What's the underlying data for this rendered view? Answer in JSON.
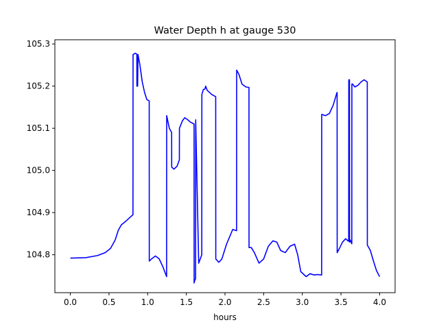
{
  "chart_data": {
    "type": "line",
    "title": "Water Depth h at gauge 530",
    "xlabel": "hours",
    "ylabel": "",
    "xlim": [
      -0.2,
      4.2
    ],
    "ylim": [
      104.71,
      105.31
    ],
    "xticks": [
      0.0,
      0.5,
      1.0,
      1.5,
      2.0,
      2.5,
      3.0,
      3.5,
      4.0
    ],
    "xtick_labels": [
      "0.0",
      "0.5",
      "1.0",
      "1.5",
      "2.0",
      "2.5",
      "3.0",
      "3.5",
      "4.0"
    ],
    "yticks": [
      104.8,
      104.9,
      105.0,
      105.1,
      105.2,
      105.3
    ],
    "ytick_labels": [
      "104.8",
      "104.9",
      "105.0",
      "105.1",
      "105.2",
      "105.3"
    ],
    "grid": false,
    "legend": "none",
    "series": [
      {
        "color": "#0000ff",
        "x": [
          0.0,
          0.2,
          0.35,
          0.45,
          0.52,
          0.58,
          0.62,
          0.66,
          0.72,
          0.78,
          0.81,
          0.811,
          0.84,
          0.86,
          0.861,
          0.87,
          0.875,
          0.9,
          0.93,
          0.96,
          0.99,
          1.02,
          1.021,
          1.05,
          1.1,
          1.15,
          1.2,
          1.245,
          1.246,
          1.28,
          1.31,
          1.311,
          1.34,
          1.38,
          1.41,
          1.411,
          1.45,
          1.48,
          1.52,
          1.55,
          1.6,
          1.601,
          1.61,
          1.62,
          1.621,
          1.66,
          1.7,
          1.701,
          1.72,
          1.74,
          1.75,
          1.77,
          1.83,
          1.88,
          1.881,
          1.92,
          1.96,
          2.02,
          2.1,
          2.15,
          2.151,
          2.18,
          2.22,
          2.27,
          2.31,
          2.311,
          2.34,
          2.38,
          2.44,
          2.5,
          2.56,
          2.62,
          2.67,
          2.72,
          2.78,
          2.84,
          2.9,
          2.94,
          2.98,
          3.05,
          3.1,
          3.15,
          3.2,
          3.25,
          3.251,
          3.3,
          3.35,
          3.4,
          3.44,
          3.45,
          3.451,
          3.48,
          3.52,
          3.56,
          3.59,
          3.6,
          3.601,
          3.61,
          3.611,
          3.62,
          3.63,
          3.64,
          3.641,
          3.65,
          3.68,
          3.72,
          3.76,
          3.8,
          3.84,
          3.841,
          3.88,
          3.92,
          3.96,
          4.0
        ],
        "y": [
          104.792,
          104.793,
          104.798,
          104.805,
          104.815,
          104.835,
          104.858,
          104.871,
          104.88,
          104.89,
          104.895,
          105.275,
          105.278,
          105.276,
          105.2,
          105.2,
          105.275,
          105.25,
          105.21,
          105.185,
          105.168,
          105.165,
          104.785,
          104.79,
          104.797,
          104.79,
          104.77,
          104.748,
          105.13,
          105.1,
          105.09,
          105.008,
          105.003,
          105.01,
          105.025,
          105.1,
          105.118,
          105.125,
          105.12,
          105.115,
          105.11,
          104.733,
          104.74,
          104.743,
          105.12,
          104.78,
          104.8,
          105.18,
          105.192,
          105.193,
          105.2,
          105.19,
          105.18,
          105.175,
          104.79,
          104.782,
          104.79,
          104.825,
          104.86,
          104.857,
          105.238,
          105.228,
          105.205,
          105.198,
          105.197,
          104.817,
          104.817,
          104.805,
          104.78,
          104.79,
          104.82,
          104.833,
          104.83,
          104.81,
          104.805,
          104.82,
          104.825,
          104.8,
          104.76,
          104.748,
          104.755,
          104.752,
          104.753,
          104.752,
          105.133,
          105.13,
          105.135,
          105.155,
          105.18,
          105.185,
          104.805,
          104.815,
          104.83,
          104.838,
          104.833,
          104.832,
          105.215,
          105.215,
          104.83,
          104.835,
          104.83,
          104.826,
          105.205,
          105.205,
          105.198,
          105.202,
          105.21,
          105.215,
          105.21,
          104.823,
          104.81,
          104.785,
          104.762,
          104.748
        ]
      }
    ]
  }
}
